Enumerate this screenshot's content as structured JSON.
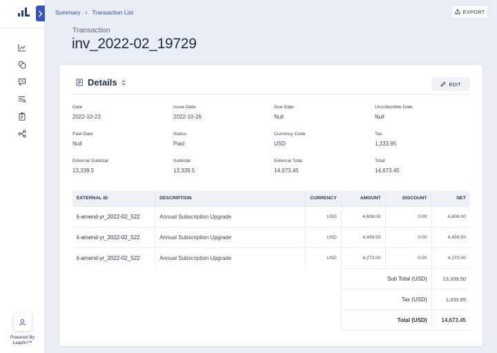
{
  "sidebar": {
    "nav_icons": [
      "chart-line-icon",
      "coins-icon",
      "chat-icon",
      "search-list-icon",
      "clipboard-icon",
      "workflow-icon"
    ],
    "powered_by": [
      "Powered By",
      "Leapfin™"
    ]
  },
  "breadcrumb": {
    "items": [
      "Summary",
      "Transaction List"
    ]
  },
  "export_label": "EXPORT",
  "page": {
    "label": "Transaction",
    "title": "inv_2022-02_19729"
  },
  "details": {
    "title": "Details",
    "edit_label": "EDIT",
    "fields": [
      {
        "label": "Date",
        "value": "2022-10-23"
      },
      {
        "label": "Issue Date",
        "value": "2022-10-26"
      },
      {
        "label": "Due Date",
        "value": "Null"
      },
      {
        "label": "Uncollectible Date",
        "value": "Null"
      },
      {
        "label": "Paid Date",
        "value": "Null"
      },
      {
        "label": "Status",
        "value": "Paid"
      },
      {
        "label": "Currency Code",
        "value": "USD"
      },
      {
        "label": "Tax",
        "value": "1,333.95"
      },
      {
        "label": "External Subtotal",
        "value": "13,339.5"
      },
      {
        "label": "Subtotal",
        "value": "13,339.5"
      },
      {
        "label": "External Total",
        "value": "14,673.45"
      },
      {
        "label": "Total",
        "value": "14,673.45"
      }
    ]
  },
  "table": {
    "headers": [
      "EXTERNAL ID",
      "DESCRIPTION",
      "CURRENCY",
      "AMOUNT",
      "DISCOUNT",
      "NET"
    ],
    "rows": [
      [
        "li-amend-yr_2022-02_522",
        "Annual Subscription Upgrade",
        "USD",
        "4,608.00",
        "0.00",
        "4,608.00"
      ],
      [
        "li-amend-yr_2022-02_522",
        "Annual Subscription Upgrade",
        "USD",
        "4,459.50",
        "0.00",
        "4,459.50"
      ],
      [
        "li-amend-yr_2022-02_522",
        "Annual Subscription Upgrade",
        "USD",
        "4,272.00",
        "0.00",
        "4,272.00"
      ]
    ],
    "summary": [
      {
        "label": "Sub Total (USD)",
        "value": "13,339.50"
      },
      {
        "label": "Tax (USD)",
        "value": "1,333.95"
      },
      {
        "label": "Total (USD)",
        "value": "14,673.45"
      }
    ]
  },
  "colors": {
    "accent": "#3955b8",
    "link": "#3349a6",
    "background": "#e9edf5"
  }
}
